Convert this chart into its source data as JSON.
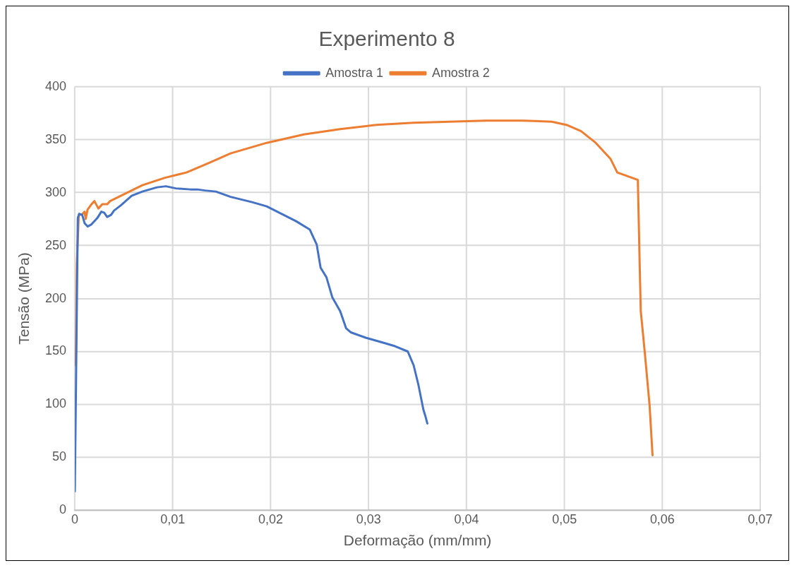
{
  "chart_data": {
    "type": "line",
    "title": "Experimento 8",
    "xlabel": "Deformação (mm/mm)",
    "ylabel": "Tensão (MPa)",
    "xlim": [
      0,
      0.07
    ],
    "xticks": [
      {
        "value": 0,
        "label": "0"
      },
      {
        "value": 0.01,
        "label": "0,01"
      },
      {
        "value": 0.02,
        "label": "0,02"
      },
      {
        "value": 0.03,
        "label": "0,03"
      },
      {
        "value": 0.04,
        "label": "0,04"
      },
      {
        "value": 0.05,
        "label": "0,05"
      },
      {
        "value": 0.06,
        "label": "0,06"
      },
      {
        "value": 0.07,
        "label": "0,07"
      }
    ],
    "ylim": [
      0,
      400
    ],
    "yticks": [
      0,
      50,
      100,
      150,
      200,
      250,
      300,
      350,
      400
    ],
    "grid": true,
    "legend": "top",
    "marker": "none",
    "line_style": "solid",
    "series": [
      {
        "name": "Amostra 1",
        "color": "#4472c4",
        "x": [
          0,
          0.0003,
          0.00045,
          0.00075,
          0.001,
          0.0013,
          0.0017,
          0.0023,
          0.0027,
          0.003,
          0.0033,
          0.0037,
          0.004,
          0.0047,
          0.0058,
          0.0069,
          0.0084,
          0.0093,
          0.0103,
          0.0118,
          0.0125,
          0.0133,
          0.0144,
          0.0159,
          0.0181,
          0.0196,
          0.0211,
          0.0226,
          0.024,
          0.0247,
          0.0251,
          0.0257,
          0.0263,
          0.0271,
          0.0277,
          0.0282,
          0.0297,
          0.0316,
          0.0327,
          0.034,
          0.0346,
          0.0351,
          0.0356,
          0.0358,
          0.036
        ],
        "values": [
          18,
          276,
          280,
          279,
          271,
          268,
          270,
          276,
          282,
          281,
          277,
          279,
          283,
          288,
          297,
          301,
          305,
          306,
          304,
          303,
          303,
          302,
          301,
          296,
          291,
          287,
          280,
          273,
          265,
          251,
          229,
          220,
          201,
          188,
          172,
          168,
          163,
          158,
          155,
          150,
          137,
          118,
          95,
          89,
          82
        ]
      },
      {
        "name": "Amostra 2",
        "color": "#ed7d31",
        "x": [
          0.0001,
          0.0002,
          0.0004,
          0.0007,
          0.001,
          0.0011,
          0.0013,
          0.0017,
          0.002,
          0.0024,
          0.0028,
          0.0033,
          0.0036,
          0.0047,
          0.0069,
          0.0092,
          0.0114,
          0.0137,
          0.0159,
          0.0196,
          0.0234,
          0.0271,
          0.0308,
          0.0346,
          0.0383,
          0.042,
          0.0457,
          0.0487,
          0.0502,
          0.0517,
          0.0532,
          0.0547,
          0.0554,
          0.0575,
          0.0577,
          0.0578,
          0.0582,
          0.0587,
          0.059
        ],
        "values": [
          137,
          233,
          279,
          279,
          282,
          275,
          284,
          289,
          292,
          285,
          289,
          289,
          292,
          297,
          307,
          314,
          319,
          328,
          337,
          347,
          355,
          360,
          364,
          366,
          367,
          368,
          368,
          367,
          364,
          358,
          347,
          332,
          319,
          312,
          227,
          188,
          150,
          99,
          52
        ]
      }
    ]
  }
}
